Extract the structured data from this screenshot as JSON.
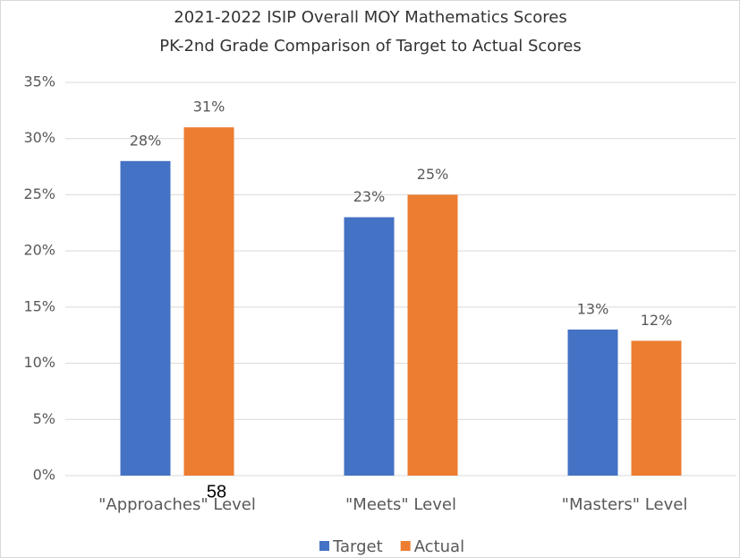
{
  "chart_data": {
    "type": "bar",
    "title": "2021-2022 ISIP Overall MOY Mathematics Scores",
    "subtitle": "PK-2nd Grade Comparison of Target to Actual Scores",
    "annotation": "58",
    "categories": [
      "\"Approaches\" Level",
      "\"Meets\" Level",
      "\"Masters\" Level"
    ],
    "series": [
      {
        "name": "Target",
        "color": "#4472c4",
        "values": [
          28,
          23,
          13
        ],
        "value_labels": [
          "28%",
          "23%",
          "13%"
        ]
      },
      {
        "name": "Actual",
        "color": "#ed7d31",
        "values": [
          31,
          25,
          12
        ],
        "value_labels": [
          "31%",
          "25%",
          "12%"
        ]
      }
    ],
    "ylim": [
      0,
      35
    ],
    "yticks": [
      {
        "value": 0,
        "label": "0%"
      },
      {
        "value": 5,
        "label": "5%"
      },
      {
        "value": 10,
        "label": "10%"
      },
      {
        "value": 15,
        "label": "15%"
      },
      {
        "value": 20,
        "label": "20%"
      },
      {
        "value": 25,
        "label": "25%"
      },
      {
        "value": 30,
        "label": "30%"
      },
      {
        "value": 35,
        "label": "35%"
      }
    ],
    "grid": true,
    "legend": "bottom"
  }
}
